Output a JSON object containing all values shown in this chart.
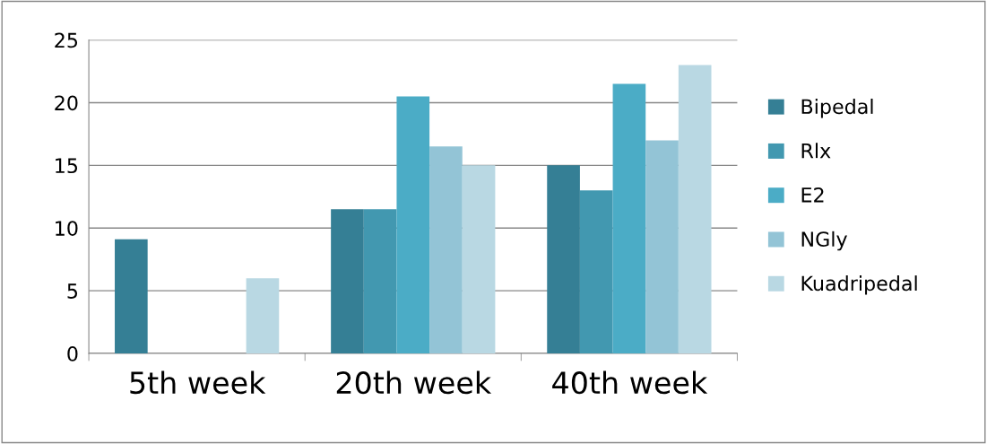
{
  "chart_data": {
    "type": "bar",
    "categories": [
      "5th week",
      "20th week",
      "40th week"
    ],
    "series": [
      {
        "name": "Bipedal",
        "color": "#357f95",
        "values": [
          9.1,
          11.5,
          15
        ]
      },
      {
        "name": "Rlx",
        "color": "#4298b0",
        "values": [
          null,
          11.5,
          13
        ]
      },
      {
        "name": "E2",
        "color": "#4bacc6",
        "values": [
          null,
          20.5,
          21.5
        ]
      },
      {
        "name": "NGly",
        "color": "#93c4d6",
        "values": [
          null,
          16.5,
          17
        ]
      },
      {
        "name": "Kuadripedal",
        "color": "#b9d8e3",
        "values": [
          6,
          15,
          23
        ]
      }
    ],
    "ylim": [
      0,
      25
    ],
    "yticks": [
      0,
      5,
      10,
      15,
      20,
      25
    ],
    "grid": "y",
    "legend": "right"
  }
}
